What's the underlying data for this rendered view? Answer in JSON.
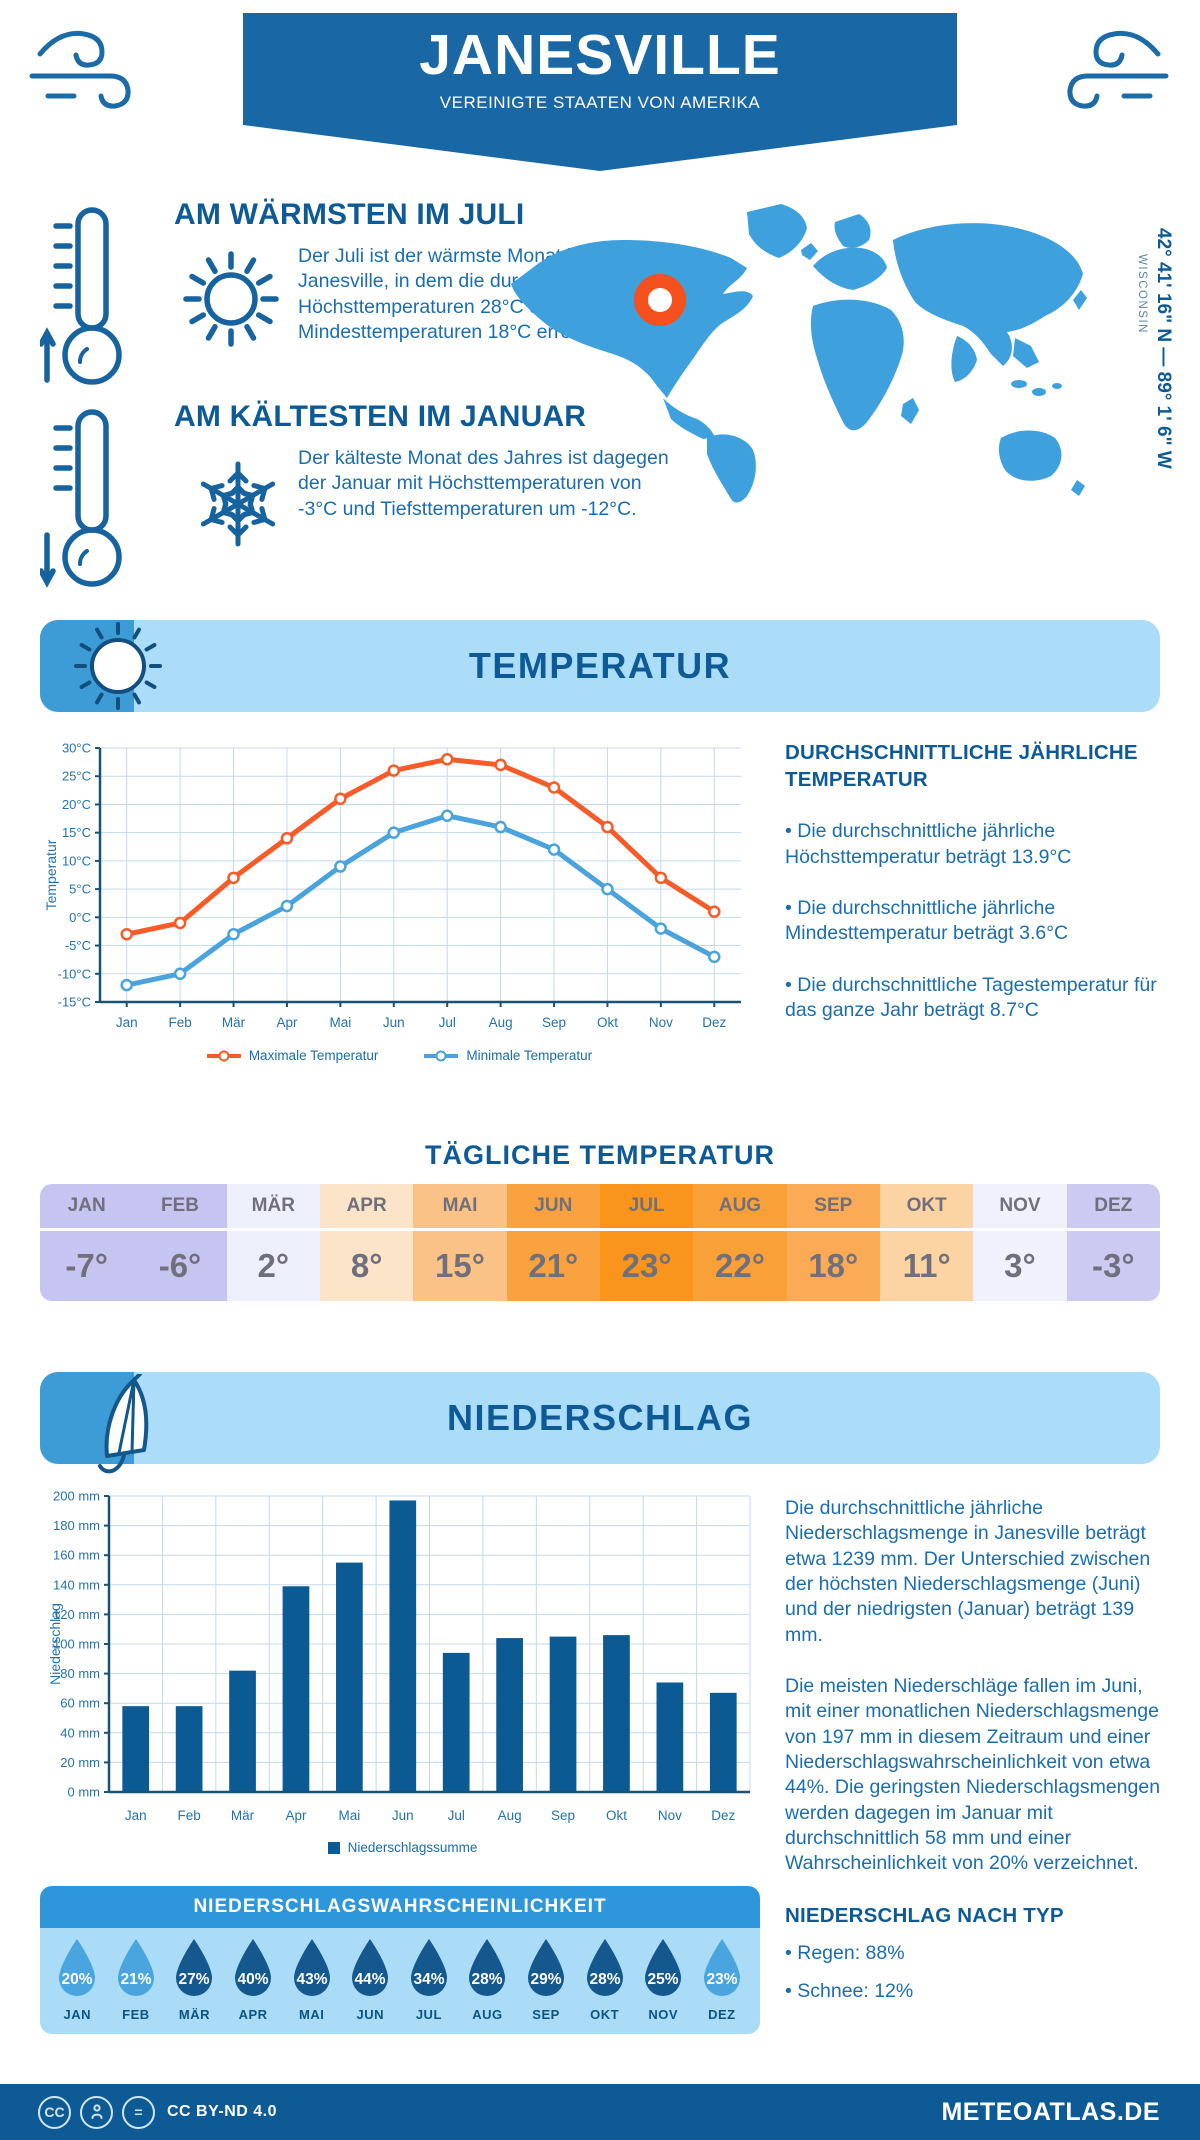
{
  "header": {
    "title": "JANESVILLE",
    "subtitle": "VEREINIGTE STAATEN VON AMERIKA"
  },
  "warmest": {
    "heading": "AM WÄRMSTEN IM JULI",
    "body": "Der Juli ist der wärmste Monat in Janesville, in dem die durchschnittlichen Höchsttemperaturen 28°C und die Mindesttemperaturen 18°C erreichen."
  },
  "coldest": {
    "heading": "AM KÄLTESTEN IM JANUAR",
    "body": "Der kälteste Monat des Jahres ist dagegen der Januar mit Höchsttemperaturen von -3°C und Tiefsttemperaturen um -12°C."
  },
  "map": {
    "coordinates": "42° 41' 16\" N — 89° 1' 6\" W",
    "region": "WISCONSIN",
    "land_color": "#3fa0de",
    "marker_color": "#f4511e"
  },
  "temperature_section": {
    "banner": "TEMPERATUR",
    "stats_heading": "DURCHSCHNITTLICHE JÄHRLICHE TEMPERATUR",
    "bullets": [
      "• Die durchschnittliche jährliche Höchsttemperatur beträgt 13.9°C",
      "• Die durchschnittliche jährliche Mindesttemperatur beträgt 3.6°C",
      "• Die durchschnittliche Tagestemperatur für das ganze Jahr beträgt 8.7°C"
    ]
  },
  "daily_table": {
    "heading": "TÄGLICHE TEMPERATUR",
    "months": [
      {
        "label": "JAN",
        "value": "-7°",
        "bg": "#c6c4f1"
      },
      {
        "label": "FEB",
        "value": "-6°",
        "bg": "#c6c4f1"
      },
      {
        "label": "MÄR",
        "value": "2°",
        "bg": "#eef0fb"
      },
      {
        "label": "APR",
        "value": "8°",
        "bg": "#fce4c9"
      },
      {
        "label": "MAI",
        "value": "15°",
        "bg": "#fbc288"
      },
      {
        "label": "JUN",
        "value": "21°",
        "bg": "#faa140"
      },
      {
        "label": "JUL",
        "value": "23°",
        "bg": "#f9941c"
      },
      {
        "label": "AUG",
        "value": "22°",
        "bg": "#faa038"
      },
      {
        "label": "SEP",
        "value": "18°",
        "bg": "#fbaa55"
      },
      {
        "label": "OKT",
        "value": "11°",
        "bg": "#fcd4a4"
      },
      {
        "label": "NOV",
        "value": "3°",
        "bg": "#f0f1fc"
      },
      {
        "label": "DEZ",
        "value": "-3°",
        "bg": "#ccc9f2"
      }
    ]
  },
  "precip_section": {
    "banner": "NIEDERSCHLAG",
    "para1": "Die durchschnittliche jährliche Niederschlagsmenge in Janesville beträgt etwa 1239 mm. Der Unterschied zwischen der höchsten Niederschlagsmenge (Juni) und der niedrigsten (Januar) beträgt 139 mm.",
    "para2": "Die meisten Niederschläge fallen im Juni, mit einer monatlichen Niederschlagsmenge von 197 mm in diesem Zeitraum und einer Niederschlagswahrscheinlichkeit von etwa 44%. Die geringsten Niederschlagsmengen werden dagegen im Januar mit durchschnittlich 58 mm und einer Wahrscheinlichkeit von 20% verzeichnet.",
    "type_heading": "NIEDERSCHLAG NACH TYP",
    "type_bullets": [
      "• Regen: 88%",
      "• Schnee: 12%"
    ]
  },
  "precip_probability": {
    "heading": "NIEDERSCHLAGSWAHRSCHEINLICHKEIT",
    "months": [
      {
        "label": "JAN",
        "value": "20%",
        "color": "#4aa4de"
      },
      {
        "label": "FEB",
        "value": "21%",
        "color": "#4aa4de"
      },
      {
        "label": "MÄR",
        "value": "27%",
        "color": "#15588e"
      },
      {
        "label": "APR",
        "value": "40%",
        "color": "#15588e"
      },
      {
        "label": "MAI",
        "value": "43%",
        "color": "#15588e"
      },
      {
        "label": "JUN",
        "value": "44%",
        "color": "#15588e"
      },
      {
        "label": "JUL",
        "value": "34%",
        "color": "#15588e"
      },
      {
        "label": "AUG",
        "value": "28%",
        "color": "#15588e"
      },
      {
        "label": "SEP",
        "value": "29%",
        "color": "#15588e"
      },
      {
        "label": "OKT",
        "value": "28%",
        "color": "#15588e"
      },
      {
        "label": "NOV",
        "value": "25%",
        "color": "#15588e"
      },
      {
        "label": "DEZ",
        "value": "23%",
        "color": "#4aa4de"
      }
    ]
  },
  "footer": {
    "license": "CC BY-ND 4.0",
    "site": "METEOATLAS.DE"
  },
  "chart_data": [
    {
      "type": "line",
      "categories": [
        "Jan",
        "Feb",
        "Mär",
        "Apr",
        "Mai",
        "Jun",
        "Jul",
        "Aug",
        "Sep",
        "Okt",
        "Nov",
        "Dez"
      ],
      "series": [
        {
          "name": "Maximale Temperatur",
          "color": "#f75b28",
          "values": [
            -3,
            -1,
            7,
            14,
            21,
            26,
            28,
            27,
            23,
            16,
            7,
            1
          ]
        },
        {
          "name": "Minimale Temperatur",
          "color": "#4aa3dc",
          "values": [
            -12,
            -10,
            -3,
            2,
            9,
            15,
            18,
            16,
            12,
            5,
            -2,
            -7
          ]
        }
      ],
      "ylabel": "Temperatur",
      "ylim": [
        -15,
        30
      ],
      "ytick_step": 5,
      "ytick_suffix": "°C",
      "grid": true,
      "legend_position": "bottom"
    },
    {
      "type": "bar",
      "categories": [
        "Jan",
        "Feb",
        "Mär",
        "Apr",
        "Mai",
        "Jun",
        "Jul",
        "Aug",
        "Sep",
        "Okt",
        "Nov",
        "Dez"
      ],
      "values": [
        58,
        58,
        82,
        139,
        155,
        197,
        94,
        104,
        105,
        106,
        74,
        67
      ],
      "legend": "Niederschlagssumme",
      "ylabel": "Niederschlag",
      "ylim": [
        0,
        200
      ],
      "ytick_step": 20,
      "ytick_suffix": " mm",
      "bar_color": "#0c5a94",
      "grid": true,
      "legend_position": "bottom"
    }
  ]
}
